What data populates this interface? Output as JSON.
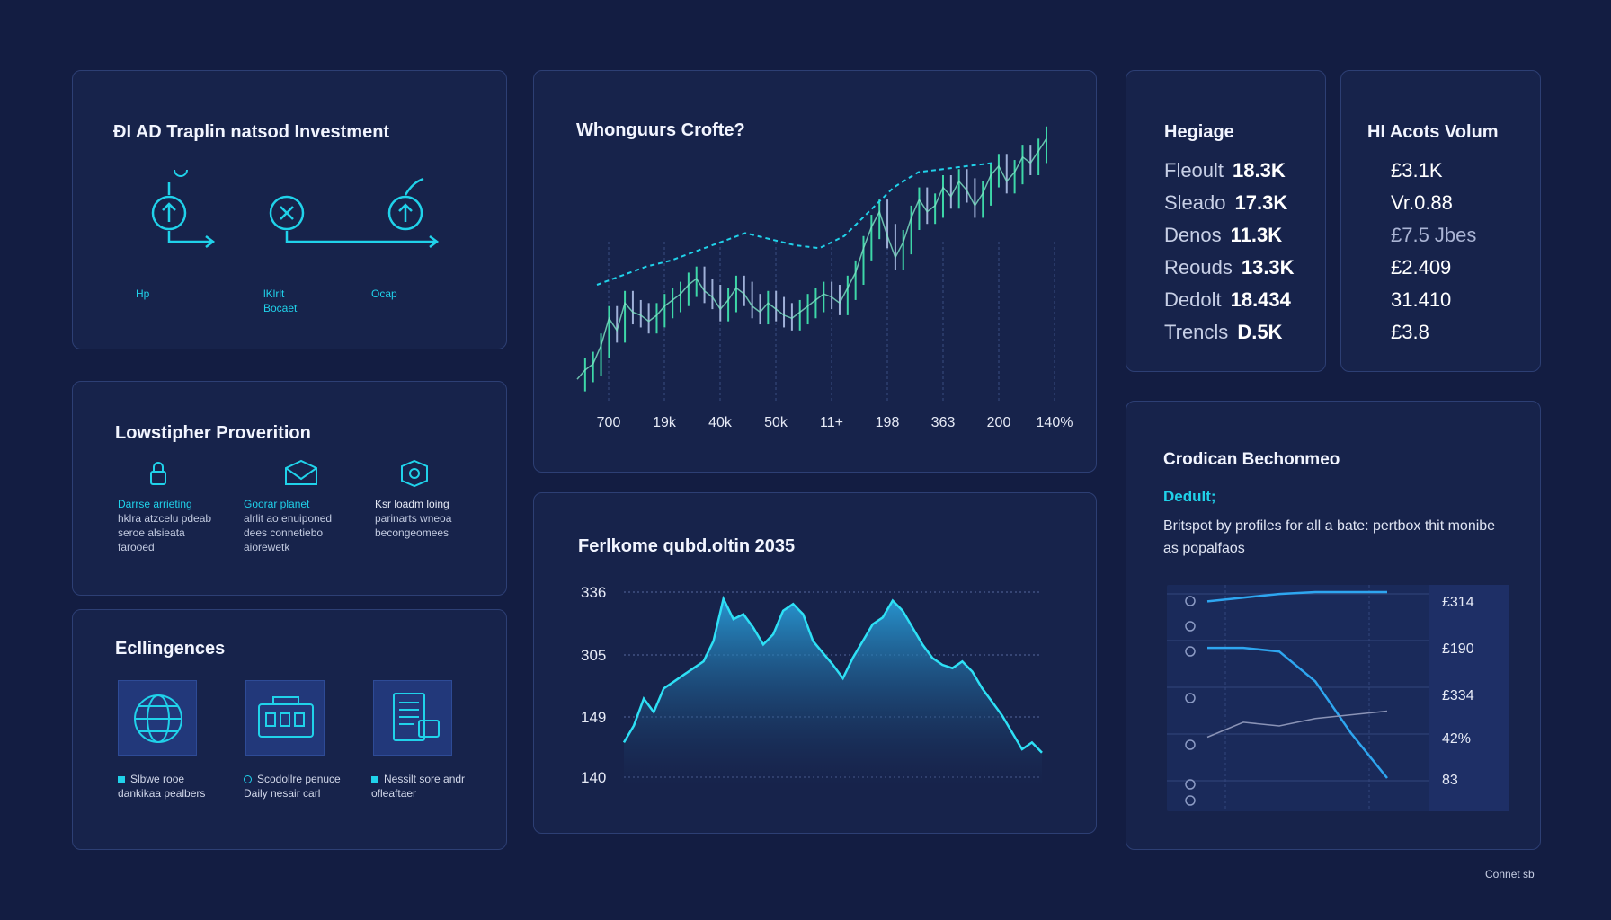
{
  "investment": {
    "title": "ĐI AD Traplin natsod Investment",
    "steps": [
      {
        "icon": "arrow-up-circle-icon",
        "label": "Hp"
      },
      {
        "icon": "x-circle-icon",
        "label": "lKlrlt Bocaet"
      },
      {
        "icon": "upload-circle-icon",
        "label": "Ocap"
      }
    ]
  },
  "provision": {
    "title": "Lowstipher Proverition",
    "items": [
      {
        "icon": "lock-icon",
        "title": "Darrse arrieting",
        "desc": "hklra atzcelu pdeab seroe alsieata farooed"
      },
      {
        "icon": "envelope-icon",
        "title": "Goorar planet",
        "desc": "alrlit ao enuiponed dees connetiebo aiorewetk"
      },
      {
        "icon": "gear-icon",
        "title": "Ksr loadm loing",
        "desc": "parinarts wneoa becongeomees"
      }
    ]
  },
  "engineering": {
    "title": "Ecllingences",
    "items": [
      {
        "icon": "globe-icon",
        "bullet": "square",
        "text": "Slbwe rooe dankikaa pealbers"
      },
      {
        "icon": "machine-icon",
        "bullet": "ring",
        "text": "Scodollre penuce Daily nesair carl"
      },
      {
        "icon": "document-icon",
        "bullet": "square",
        "text": "Nessilt sore andr ofleaftaer"
      }
    ]
  },
  "chart1": {
    "title": "Whonguurs Crofte?",
    "chart_data": {
      "type": "line",
      "x_tick_labels": [
        "700",
        "19k",
        "40k",
        "50k",
        "11+",
        "198",
        "363",
        "200",
        "140%"
      ],
      "series": [
        {
          "values": [
            5,
            8,
            10,
            16,
            25,
            21,
            30,
            27,
            26,
            24,
            26,
            29,
            31,
            33,
            36,
            38,
            34,
            32,
            28,
            31,
            35,
            33,
            29,
            27,
            30,
            28,
            26,
            25,
            27,
            29,
            31,
            33,
            32,
            30,
            35,
            40,
            48,
            55,
            60,
            52,
            45,
            50,
            58,
            64,
            60,
            62,
            68,
            65,
            70,
            67,
            62,
            66,
            72,
            75,
            70,
            73,
            78,
            76,
            80,
            84
          ]
        },
        {
          "values": [
            36,
            39,
            42,
            44,
            47,
            50,
            53,
            51,
            49,
            48,
            52,
            60,
            68,
            73,
            74,
            75,
            76
          ]
        }
      ]
    }
  },
  "chart2": {
    "title": "Ferlkome qubd.oltin 2035",
    "chart_data": {
      "type": "area",
      "y_tick_labels": [
        "336",
        "305",
        "149",
        "140"
      ],
      "series": [
        {
          "values": [
            0.12,
            0.22,
            0.38,
            0.3,
            0.44,
            0.48,
            0.52,
            0.56,
            0.6,
            0.72,
            0.97,
            0.85,
            0.88,
            0.8,
            0.7,
            0.76,
            0.9,
            0.94,
            0.88,
            0.72,
            0.65,
            0.58,
            0.5,
            0.62,
            0.72,
            0.82,
            0.86,
            0.96,
            0.9,
            0.8,
            0.7,
            0.62,
            0.58,
            0.56,
            0.6,
            0.54,
            0.44,
            0.36,
            0.28,
            0.18,
            0.08,
            0.12,
            0.06
          ]
        }
      ]
    }
  },
  "heritage": {
    "title": "Hegiage",
    "rows": [
      {
        "label": "Fleoult",
        "value": "18.3K"
      },
      {
        "label": "Sleado",
        "value": "17.3K"
      },
      {
        "label": "Denos",
        "value": "11.3K"
      },
      {
        "label": "Reouds",
        "value": "13.3K"
      },
      {
        "label": "Dedolt",
        "value": "18.434"
      },
      {
        "label": "Trencls",
        "value": "D.5K"
      }
    ]
  },
  "volume": {
    "title": "HI Acots Volum",
    "values": [
      "£3.1K",
      "Vr.0.88",
      "£7.5 Jbes",
      "£2.409",
      "31.410",
      "£3.8"
    ]
  },
  "performance": {
    "title": "Crodican Bechonmeo",
    "subtitle": "Dedult;",
    "text": "Britspot by profiles for all a bate: pertbox thit monibe as popalfaos",
    "chart_data": {
      "type": "line",
      "y_tick_labels": [
        "£314",
        "£190",
        "£334",
        "42%",
        "83"
      ],
      "series": [
        {
          "values": [
            0.95,
            0.97,
            0.99,
            1.0,
            1.0,
            1.0
          ]
        },
        {
          "values": [
            0.7,
            0.7,
            0.68,
            0.52,
            0.24,
            0.0
          ]
        },
        {
          "values": [
            0.22,
            0.3,
            0.28,
            0.32,
            0.34,
            0.36
          ]
        }
      ]
    }
  },
  "footer": {
    "label": "Connet sb"
  },
  "colors": {
    "accent": "#20d2ea",
    "panel": "#17234b",
    "border": "#2d3f74",
    "background": "#131d42"
  }
}
